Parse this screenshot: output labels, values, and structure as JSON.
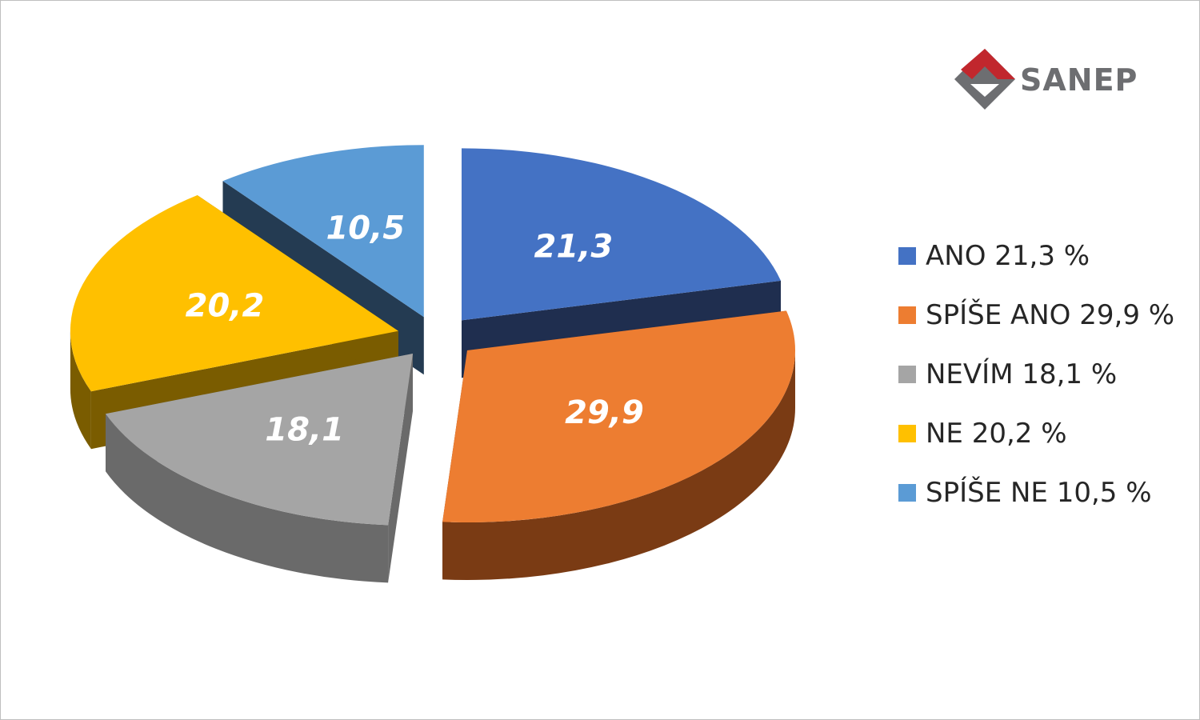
{
  "logo": {
    "text": "SANEP",
    "colors": {
      "red": "#c1272d",
      "gray": "#6d6e71"
    }
  },
  "chart_data": {
    "type": "pie",
    "style": "3d-exploded",
    "legend_position": "right",
    "slices": [
      {
        "label": "ANO",
        "value": 21.3,
        "value_label": "21,3",
        "legend": "ANO 21,3 %",
        "color": "#4472c4",
        "side": "#1f2e4f"
      },
      {
        "label": "SPÍŠE ANO",
        "value": 29.9,
        "value_label": "29,9",
        "legend": "SPÍŠE ANO 29,9 %",
        "color": "#ed7d31",
        "side": "#7a3b14"
      },
      {
        "label": "NEVÍM",
        "value": 18.1,
        "value_label": "18,1",
        "legend": "NEVÍM 18,1 %",
        "color": "#a5a5a5",
        "side": "#6a6a6a"
      },
      {
        "label": "NE",
        "value": 20.2,
        "value_label": "20,2",
        "legend": "NE 20,2 %",
        "color": "#ffc000",
        "side": "#7a5c00"
      },
      {
        "label": "SPÍŠE NE",
        "value": 10.5,
        "value_label": "10,5",
        "legend": "SPÍŠE NE 10,5 %",
        "color": "#5b9bd5",
        "side": "#243b52"
      }
    ]
  }
}
